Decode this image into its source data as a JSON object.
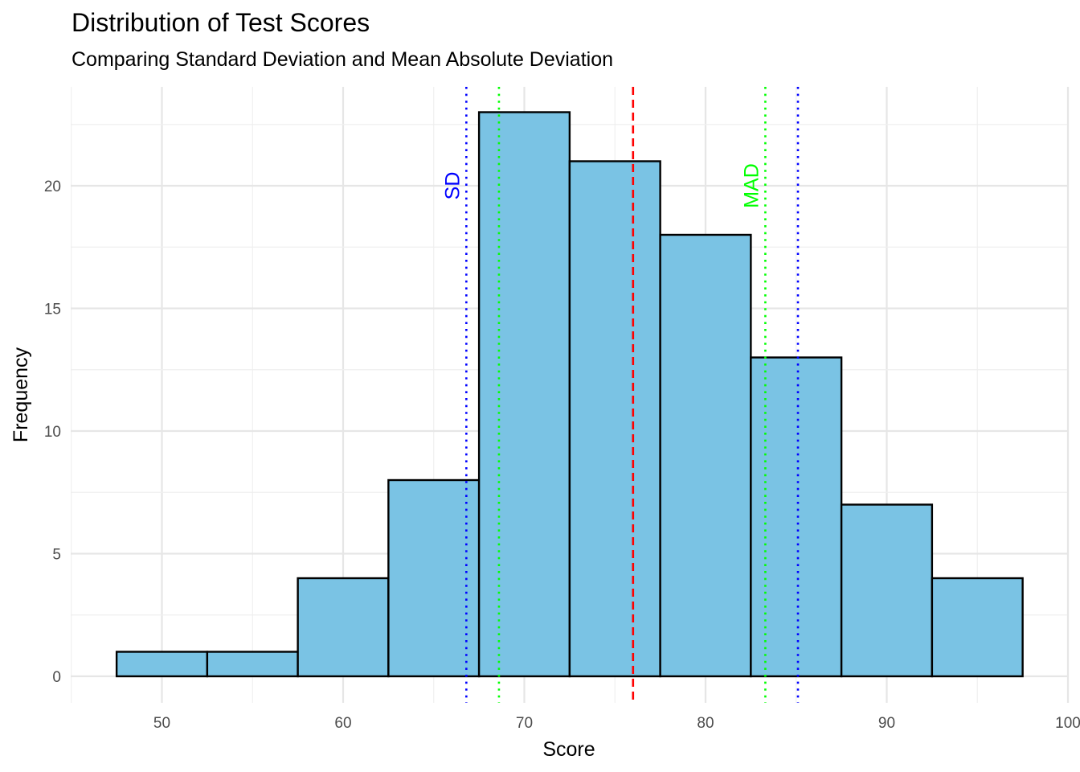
{
  "chart_data": {
    "type": "bar",
    "title": "Distribution of Test Scores",
    "subtitle": "Comparing Standard Deviation and Mean Absolute Deviation",
    "xlabel": "Score",
    "ylabel": "Frequency",
    "xlim": [
      45,
      100
    ],
    "ylim": [
      0,
      23
    ],
    "x_ticks": [
      50,
      60,
      70,
      80,
      90,
      100
    ],
    "y_ticks": [
      0,
      5,
      10,
      15,
      20
    ],
    "bin_width": 5,
    "bins": [
      {
        "center": 50,
        "count": 1
      },
      {
        "center": 55,
        "count": 1
      },
      {
        "center": 60,
        "count": 4
      },
      {
        "center": 65,
        "count": 8
      },
      {
        "center": 70,
        "count": 23
      },
      {
        "center": 75,
        "count": 21
      },
      {
        "center": 80,
        "count": 18
      },
      {
        "center": 85,
        "count": 13
      },
      {
        "center": 90,
        "count": 7
      },
      {
        "center": 95,
        "count": 4
      }
    ],
    "bar_fill": "#7ac3e4",
    "bar_outline": "#000000",
    "grid": true,
    "reference_lines": [
      {
        "id": "mean",
        "x": 76.0,
        "color": "#ff0000",
        "style": "dashed"
      },
      {
        "id": "sd-lower",
        "x": 66.8,
        "color": "#0000ff",
        "style": "dotted"
      },
      {
        "id": "sd-upper",
        "x": 85.1,
        "color": "#0000ff",
        "style": "dotted"
      },
      {
        "id": "mad-lower",
        "x": 68.6,
        "color": "#00ff00",
        "style": "dotted"
      },
      {
        "id": "mad-upper",
        "x": 83.3,
        "color": "#00ff00",
        "style": "dotted"
      }
    ],
    "annotations": [
      {
        "text": "SD",
        "x": 66.8,
        "y": 20.0,
        "color": "#0000ff"
      },
      {
        "text": "MAD",
        "x": 83.3,
        "y": 20.0,
        "color": "#00ff00"
      }
    ]
  }
}
